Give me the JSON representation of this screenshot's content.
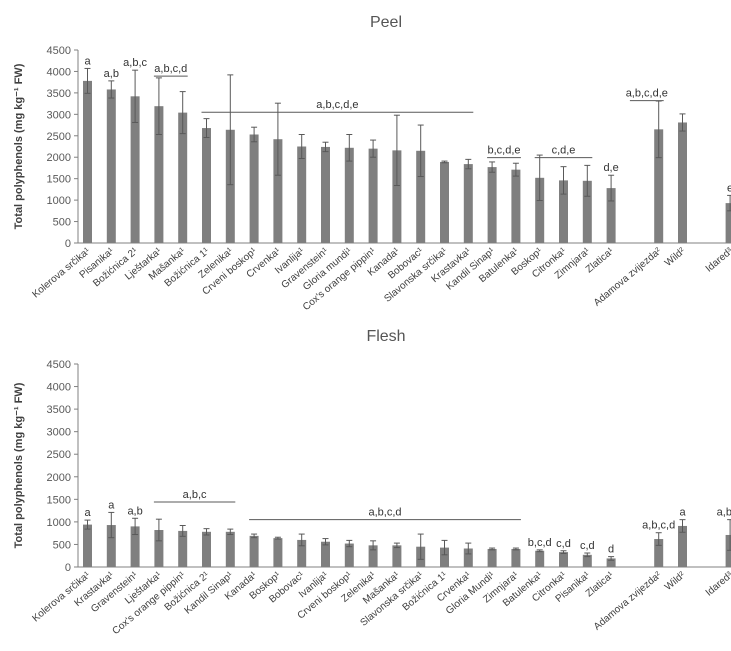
{
  "chart_data": [
    {
      "type": "bar",
      "title": "Peel",
      "ylabel": "Total polyphenols (mg kg⁻¹ FW)",
      "ylim": [
        0,
        4500
      ],
      "yticks": [
        "0",
        "500",
        "1000",
        "1500",
        "2000",
        "2500",
        "3000",
        "3500",
        "4000",
        "4500"
      ],
      "grid": false,
      "categories": [
        "Kolerova srčika¹",
        "Pisanika¹",
        "Božićnica 2¹",
        "Lještarka¹",
        "Mašanka¹",
        "Božićnica 1¹",
        "Zelenika¹",
        "Crveni boskop¹",
        "Crvenka¹",
        "Ivanlija¹",
        "Gravenstein¹",
        "Gloria mundi¹",
        "Cox's orange pippin¹",
        "Kanada¹",
        "Bobovac¹",
        "Slavonska srčika¹",
        "Krastavka¹",
        "Kandil Sinap¹",
        "Batulenka¹",
        "Boskop¹",
        "Citronka¹",
        "Zimnjara¹",
        "Zlatica¹",
        "Adamova zvijezda²",
        "Wild²",
        "Idared³"
      ],
      "values": [
        3780,
        3580,
        3420,
        3190,
        3040,
        2680,
        2640,
        2530,
        2420,
        2250,
        2240,
        2220,
        2200,
        2160,
        2150,
        1890,
        1840,
        1770,
        1710,
        1520,
        1460,
        1450,
        1280,
        2650,
        2810,
        930
      ],
      "errors": [
        290,
        200,
        610,
        660,
        490,
        220,
        1280,
        170,
        840,
        280,
        110,
        310,
        200,
        820,
        600,
        20,
        110,
        120,
        150,
        530,
        320,
        360,
        300,
        660,
        200,
        180
      ],
      "slots": [
        0,
        1,
        2,
        3,
        4,
        5,
        6,
        7,
        8,
        9,
        10,
        11,
        12,
        13,
        14,
        15,
        16,
        17,
        18,
        19,
        20,
        21,
        22,
        24,
        25,
        27
      ],
      "letters": [
        "a",
        "a,b",
        "a,b,c",
        "",
        "",
        "",
        "",
        "",
        "",
        "",
        "",
        "",
        "",
        "",
        "",
        "",
        "",
        "",
        "",
        "",
        "",
        "",
        "",
        "",
        "",
        "e"
      ],
      "group_labels": [
        {
          "text": "a,b,c,d",
          "from": 3,
          "to": 4,
          "y": 3890
        },
        {
          "text": "a,b,c,d,e",
          "from": 5,
          "to": 16,
          "y": 3050
        },
        {
          "text": "b,c,d,e",
          "from": 17,
          "to": 18,
          "y": 1990
        },
        {
          "text": "c,d,e",
          "from": 19,
          "to": 21,
          "y": 1990
        },
        {
          "text": "d,e",
          "from": 22,
          "to": 22,
          "y": null
        },
        {
          "text": "a,b,c,d,e",
          "from": 23,
          "to": 24,
          "y": 3320
        }
      ]
    },
    {
      "type": "bar",
      "title": "Flesh",
      "ylabel": "Total polyphenols (mg kg⁻¹ FW)",
      "ylim": [
        0,
        4500
      ],
      "yticks": [
        "0",
        "500",
        "1000",
        "1500",
        "2000",
        "2500",
        "3000",
        "3500",
        "4000",
        "4500"
      ],
      "grid": false,
      "categories": [
        "Kolerova srčika¹",
        "Krastavka¹",
        "Gravenstein¹",
        "Lještarka¹",
        "Cox's orange pippin¹",
        "Božićnica 2¹",
        "Kandil Sinap¹",
        "Kanada¹",
        "Boskop¹",
        "Bobovac¹",
        "Ivanlija¹",
        "Crveni boskop¹",
        "Zelenika¹",
        "Mašanka¹",
        "Slavonska srčika¹",
        "Božićnica 1¹",
        "Crvenka¹",
        "Gloria Mundi¹",
        "Zimnjara¹",
        "Batulenka¹",
        "Citronka¹",
        "Pisanika¹",
        "Zlatica¹",
        "Adamova zvijezda²",
        "Wild²",
        "Idared³"
      ],
      "values": [
        940,
        930,
        900,
        820,
        800,
        780,
        780,
        690,
        640,
        600,
        560,
        520,
        480,
        480,
        450,
        430,
        410,
        400,
        400,
        360,
        330,
        270,
        190,
        620,
        910,
        710
      ],
      "errors": [
        100,
        280,
        180,
        240,
        120,
        70,
        60,
        40,
        20,
        130,
        70,
        70,
        100,
        50,
        280,
        160,
        120,
        20,
        20,
        20,
        30,
        40,
        40,
        140,
        140,
        340
      ],
      "slots": [
        0,
        1,
        2,
        3,
        4,
        5,
        6,
        7,
        8,
        9,
        10,
        11,
        12,
        13,
        14,
        15,
        16,
        17,
        18,
        19,
        20,
        21,
        22,
        24,
        25,
        27
      ],
      "letters": [
        "a",
        "a",
        "a,b",
        "",
        "",
        "",
        "",
        "",
        "",
        "",
        "",
        "",
        "",
        "",
        "",
        "",
        "",
        "",
        "",
        "b,c,d",
        "c,d",
        "c,d",
        "d",
        "a,b,c,d",
        "a",
        "a,b,c,"
      ],
      "group_labels": [
        {
          "text": "a,b,c",
          "from": 3,
          "to": 6,
          "y": 1440
        },
        {
          "text": "a,b,c,d",
          "from": 7,
          "to": 18,
          "y": 1050
        }
      ]
    }
  ]
}
